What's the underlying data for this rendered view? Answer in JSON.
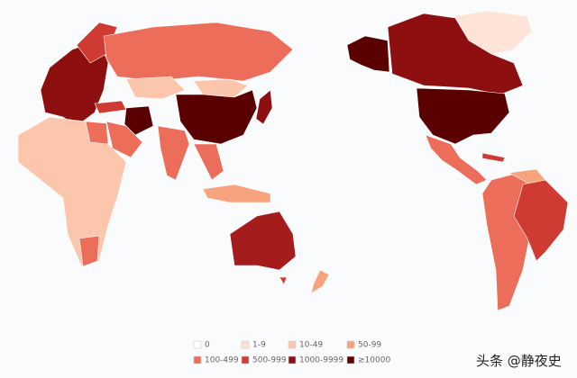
{
  "legend": {
    "items": [
      {
        "label": "0",
        "color": "#ffffff"
      },
      {
        "label": "1-9",
        "color": "#fde3d8"
      },
      {
        "label": "10-49",
        "color": "#fcc6ad"
      },
      {
        "label": "50-99",
        "color": "#f7a47e"
      },
      {
        "label": "100-499",
        "color": "#ed6d5b"
      },
      {
        "label": "500-999",
        "color": "#cf3a33"
      },
      {
        "label": "1000-9999",
        "color": "#8e0f10"
      },
      {
        "label": "≥10000",
        "color": "#5a0000"
      }
    ]
  },
  "watermark": "头条 @静夜史"
}
